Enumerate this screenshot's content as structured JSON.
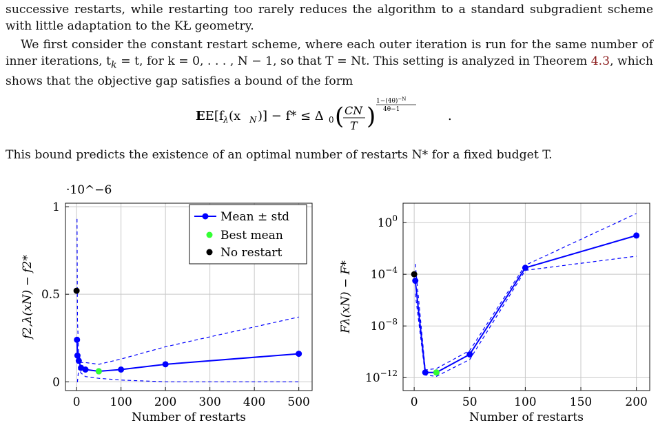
{
  "text": {
    "p1": "successive restarts, while restarting too rarely reduces the algorithm to a standard subgradient scheme with little adaptation to the KŁ geometry.",
    "p2_a": "We first consider the constant restart scheme, where each outer iteration is run for the same number of inner iterations, t",
    "p2_b": "k",
    "p2_c": " = t, for k = 0, . . . , N − 1, so that T = Nt. This setting is analyzed in Theorem ",
    "p2_ref": "4.3",
    "p2_d": ", which shows that the objective gap satisfies a bound of the form",
    "equation_lhs": "E[f",
    "equation_mid": "(x",
    "equation_rhs": ")] − f* ≤ Δ",
    "equation_frac_num": "CN",
    "equation_frac_den": "T",
    "equation_exp_num": "1−(4θ)",
    "equation_exp_num_sup": "−N",
    "equation_exp_den": "4θ−1",
    "p3": "This bound predicts the existence of an optimal number of restarts N* for a fixed budget T."
  },
  "colors": {
    "series": "#0000ff",
    "best": "#33ff33",
    "norestart": "#000000",
    "link": "#8b1a1a"
  },
  "chart_data": [
    {
      "type": "line",
      "scale_label": "·10^−6",
      "xlabel": "Number of restarts",
      "ylabel": "f2,λ(xN) − f2*",
      "xlim": [
        -25,
        530
      ],
      "ylim": [
        -0.05,
        1.02
      ],
      "xticks": [
        0,
        100,
        200,
        300,
        400,
        500
      ],
      "yticks": [
        0,
        0.5,
        1
      ],
      "ytick_labels": [
        "0",
        "0.5",
        "1"
      ],
      "grid": true,
      "legend_position": "top-right",
      "legend": [
        "Mean ± std",
        "Best mean",
        "No restart"
      ],
      "mean": {
        "x": [
          1,
          2,
          5,
          10,
          20,
          50,
          100,
          200,
          500
        ],
        "y": [
          0.24,
          0.15,
          0.12,
          0.08,
          0.07,
          0.06,
          0.07,
          0.1,
          0.16
        ]
      },
      "upper": {
        "x": [
          1,
          2,
          5,
          10,
          20,
          50,
          100,
          200,
          500
        ],
        "y": [
          0.93,
          0.35,
          0.16,
          0.11,
          0.11,
          0.1,
          0.13,
          0.2,
          0.37
        ]
      },
      "lower": {
        "x": [
          1,
          2,
          5,
          10,
          20,
          50,
          100,
          200,
          500
        ],
        "y": [
          0.0,
          0.0,
          0.08,
          0.05,
          0.03,
          0.02,
          0.01,
          0.0,
          0.0
        ]
      },
      "best_mean": {
        "x": 50,
        "y": 0.06
      },
      "no_restart": {
        "x": 0,
        "y": 0.52
      }
    },
    {
      "type": "line",
      "xlabel": "Number of restarts",
      "ylabel": "Fλ(xN) − F*",
      "log_y": true,
      "xlim": [
        -10,
        212
      ],
      "ylim_log10": [
        -13,
        1.5
      ],
      "xticks": [
        0,
        50,
        100,
        150,
        200
      ],
      "yticks_log10": [
        -12,
        -8,
        -4,
        0
      ],
      "ytick_labels": [
        "10^−12",
        "10^−8",
        "10^−4",
        "10^0"
      ],
      "grid": true,
      "mean": {
        "x": [
          1,
          10,
          20,
          50,
          100,
          200
        ],
        "y_log10": [
          -4.5,
          -11.6,
          -11.6,
          -10.2,
          -3.5,
          -1.0
        ]
      },
      "upper": {
        "x": [
          1,
          10,
          20,
          50,
          100,
          200
        ],
        "y_log10": [
          -3.2,
          -11.4,
          -11.3,
          -9.9,
          -3.3,
          0.7
        ]
      },
      "lower": {
        "x": [
          1,
          10,
          20,
          50,
          100,
          200
        ],
        "y_log10": [
          -5.5,
          -11.8,
          -11.9,
          -10.6,
          -3.7,
          -2.6
        ]
      },
      "best_mean": {
        "x": 20,
        "y_log10": -11.6
      },
      "no_restart": {
        "x": 0,
        "y_log10": -4.0
      }
    }
  ]
}
